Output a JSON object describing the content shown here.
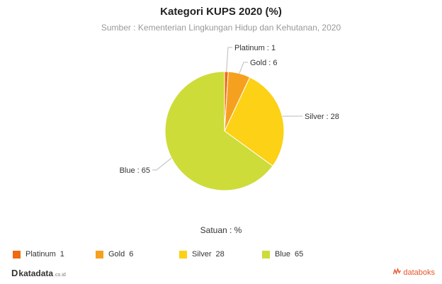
{
  "chart_data": {
    "type": "pie",
    "title": "Kategori KUPS 2020 (%)",
    "subtitle": "Sumber : Kementerian Lingkungan Hidup dan Kehutanan, 2020",
    "unit_label": "Satuan : %",
    "slices": [
      {
        "name": "Platinum",
        "value": 1,
        "color": "#f06a10"
      },
      {
        "name": "Gold",
        "value": 6,
        "color": "#f5a11f"
      },
      {
        "name": "Silver",
        "value": 28,
        "color": "#fcd116"
      },
      {
        "name": "Blue",
        "value": 65,
        "color": "#cddc39"
      }
    ],
    "slice_labels": [
      "Platinum : 1",
      "Gold : 6",
      "Silver : 28",
      "Blue : 65"
    ],
    "legend": {
      "placement": "bottom",
      "items": [
        {
          "label": "Platinum",
          "value": "1"
        },
        {
          "label": "Gold",
          "value": "6"
        },
        {
          "label": "Silver",
          "value": "28"
        },
        {
          "label": "Blue",
          "value": "65"
        }
      ]
    }
  },
  "branding": {
    "left_logo": "katadata",
    "left_logo_mark": "D",
    "left_logo_suffix": ".co.id",
    "right_logo": "databoks",
    "right_logo_icon": "chart-wave-icon"
  }
}
